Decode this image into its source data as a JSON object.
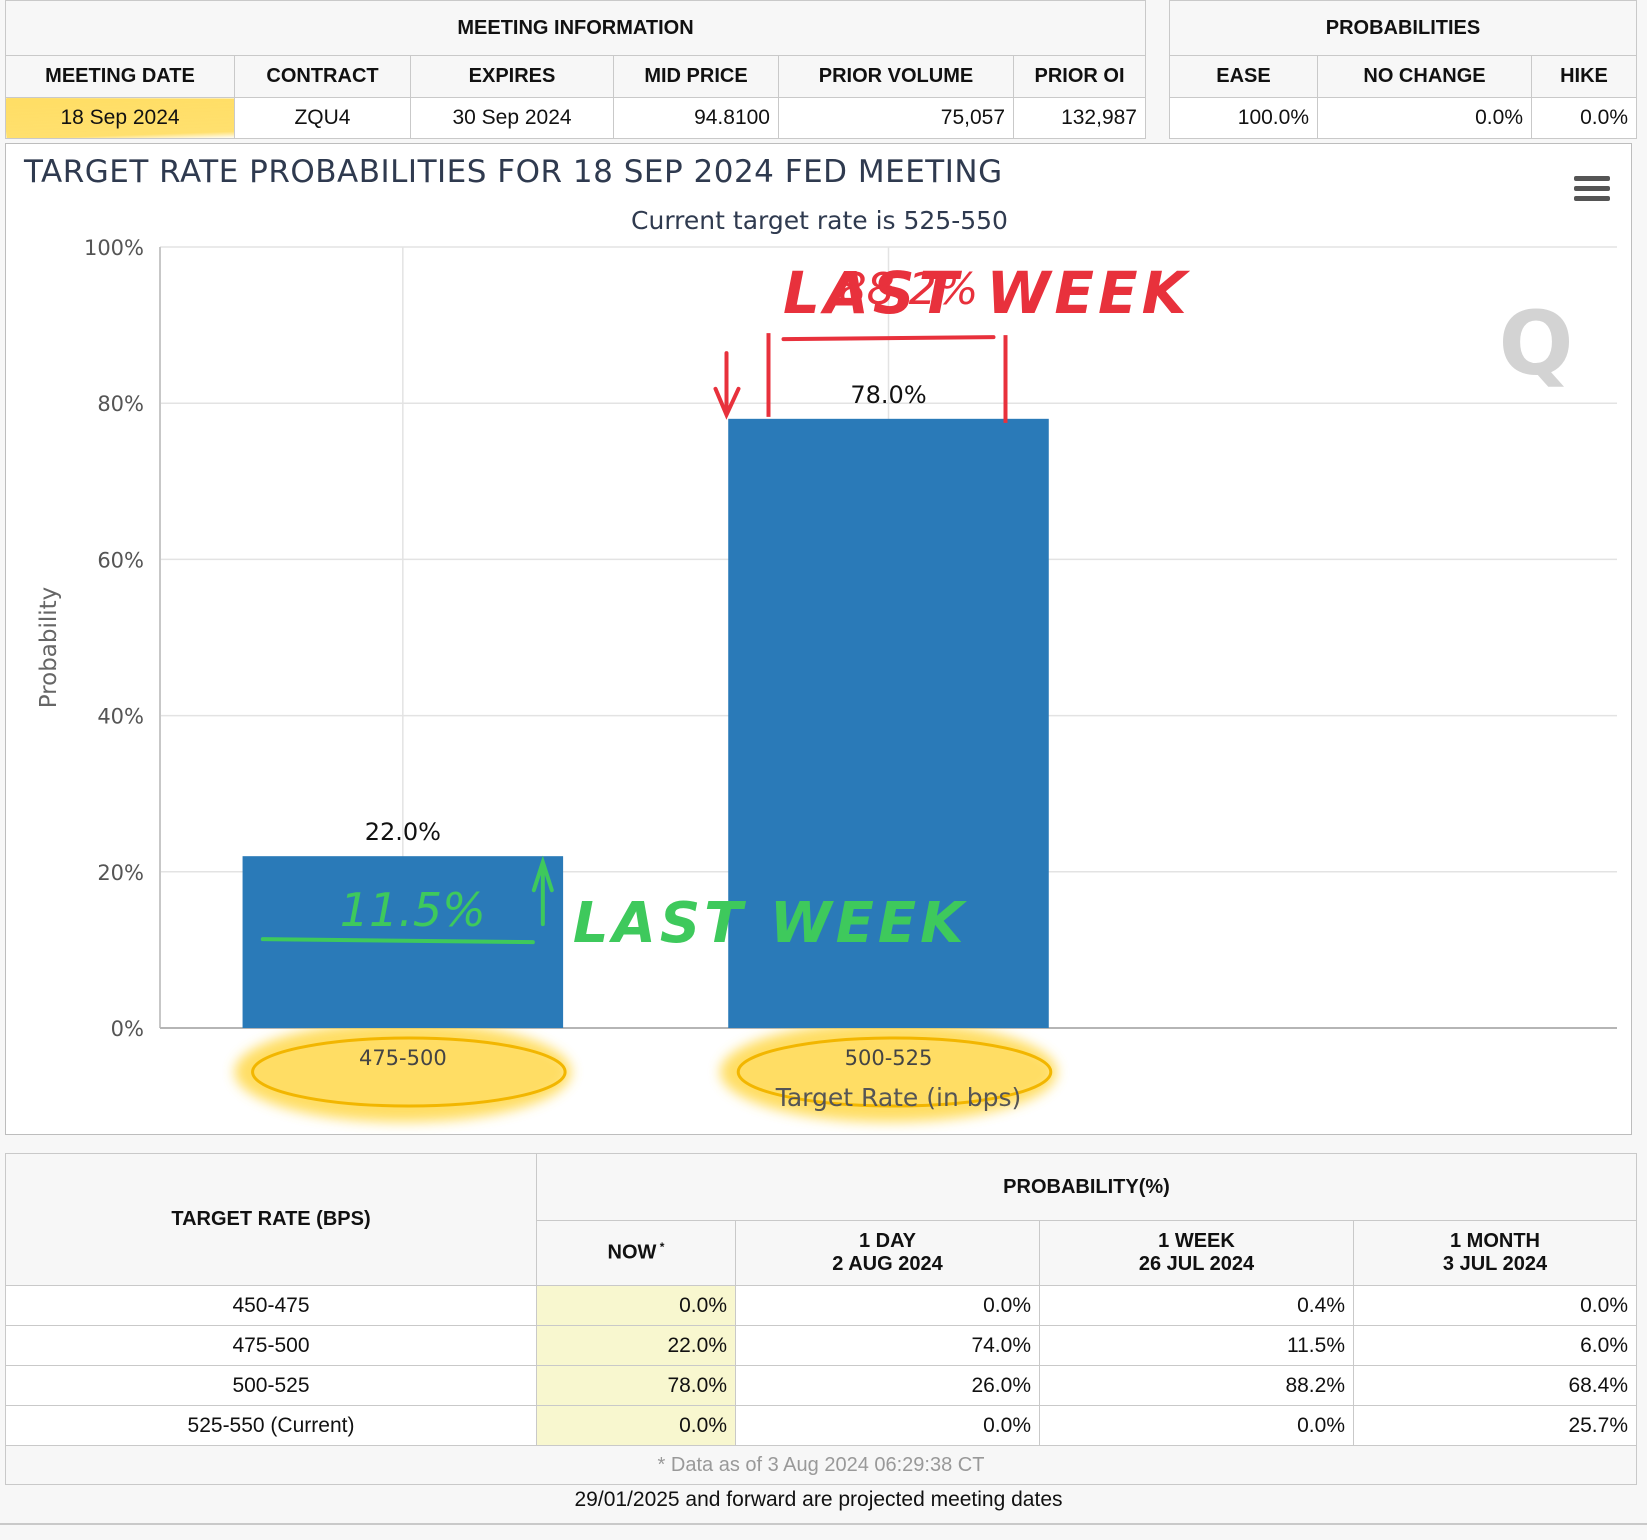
{
  "meeting_info": {
    "group_title": "MEETING INFORMATION",
    "headers": [
      "MEETING DATE",
      "CONTRACT",
      "EXPIRES",
      "MID PRICE",
      "PRIOR VOLUME",
      "PRIOR OI"
    ],
    "values": [
      "18 Sep 2024",
      "ZQU4",
      "30 Sep 2024",
      "94.8100",
      "75,057",
      "132,987"
    ]
  },
  "probabilities": {
    "group_title": "PROBABILITIES",
    "headers": [
      "EASE",
      "NO CHANGE",
      "HIKE"
    ],
    "values": [
      "100.0%",
      "0.0%",
      "0.0%"
    ]
  },
  "chart_data": {
    "type": "bar",
    "title": "TARGET RATE PROBABILITIES FOR 18 SEP 2024 FED MEETING",
    "subtitle": "Current target rate is 525-550",
    "xlabel": "Target Rate (in bps)",
    "ylabel": "Probability",
    "categories": [
      "475-500",
      "500-525"
    ],
    "values": [
      22.0,
      78.0
    ],
    "data_labels": [
      "22.0%",
      "78.0%"
    ],
    "ylim": [
      0,
      100
    ],
    "yticks": [
      0,
      20,
      40,
      60,
      80,
      100
    ],
    "ytick_labels": [
      "0%",
      "20%",
      "40%",
      "60%",
      "80%",
      "100%"
    ],
    "grid": true,
    "bar_color": "#2a7ab8",
    "annotations": {
      "red_label": "LAST WEEK",
      "red_value": "88.2%",
      "green_label": "LAST WEEK",
      "green_value": "11.5%",
      "red_color": "#e8313c",
      "green_color": "#3ec95c",
      "highlight_color": "#ffd84a"
    }
  },
  "rate_table": {
    "target_header": "TARGET RATE (BPS)",
    "prob_header": "PROBABILITY(%)",
    "columns": [
      {
        "line1": "NOW",
        "line2": "",
        "mark": "*"
      },
      {
        "line1": "1 DAY",
        "line2": "2 AUG 2024"
      },
      {
        "line1": "1 WEEK",
        "line2": "26 JUL 2024"
      },
      {
        "line1": "1 MONTH",
        "line2": "3 JUL 2024"
      }
    ],
    "rows": [
      {
        "rate": "450-475",
        "values": [
          "0.0%",
          "0.0%",
          "0.4%",
          "0.0%"
        ]
      },
      {
        "rate": "475-500",
        "values": [
          "22.0%",
          "74.0%",
          "11.5%",
          "6.0%"
        ]
      },
      {
        "rate": "500-525",
        "values": [
          "78.0%",
          "26.0%",
          "88.2%",
          "68.4%"
        ]
      },
      {
        "rate": "525-550 (Current)",
        "values": [
          "0.0%",
          "0.0%",
          "0.0%",
          "25.7%"
        ]
      }
    ],
    "footnote": "* Data as of 3 Aug 2024 06:29:38 CT"
  },
  "projected_note": "29/01/2025 and forward are projected meeting dates"
}
